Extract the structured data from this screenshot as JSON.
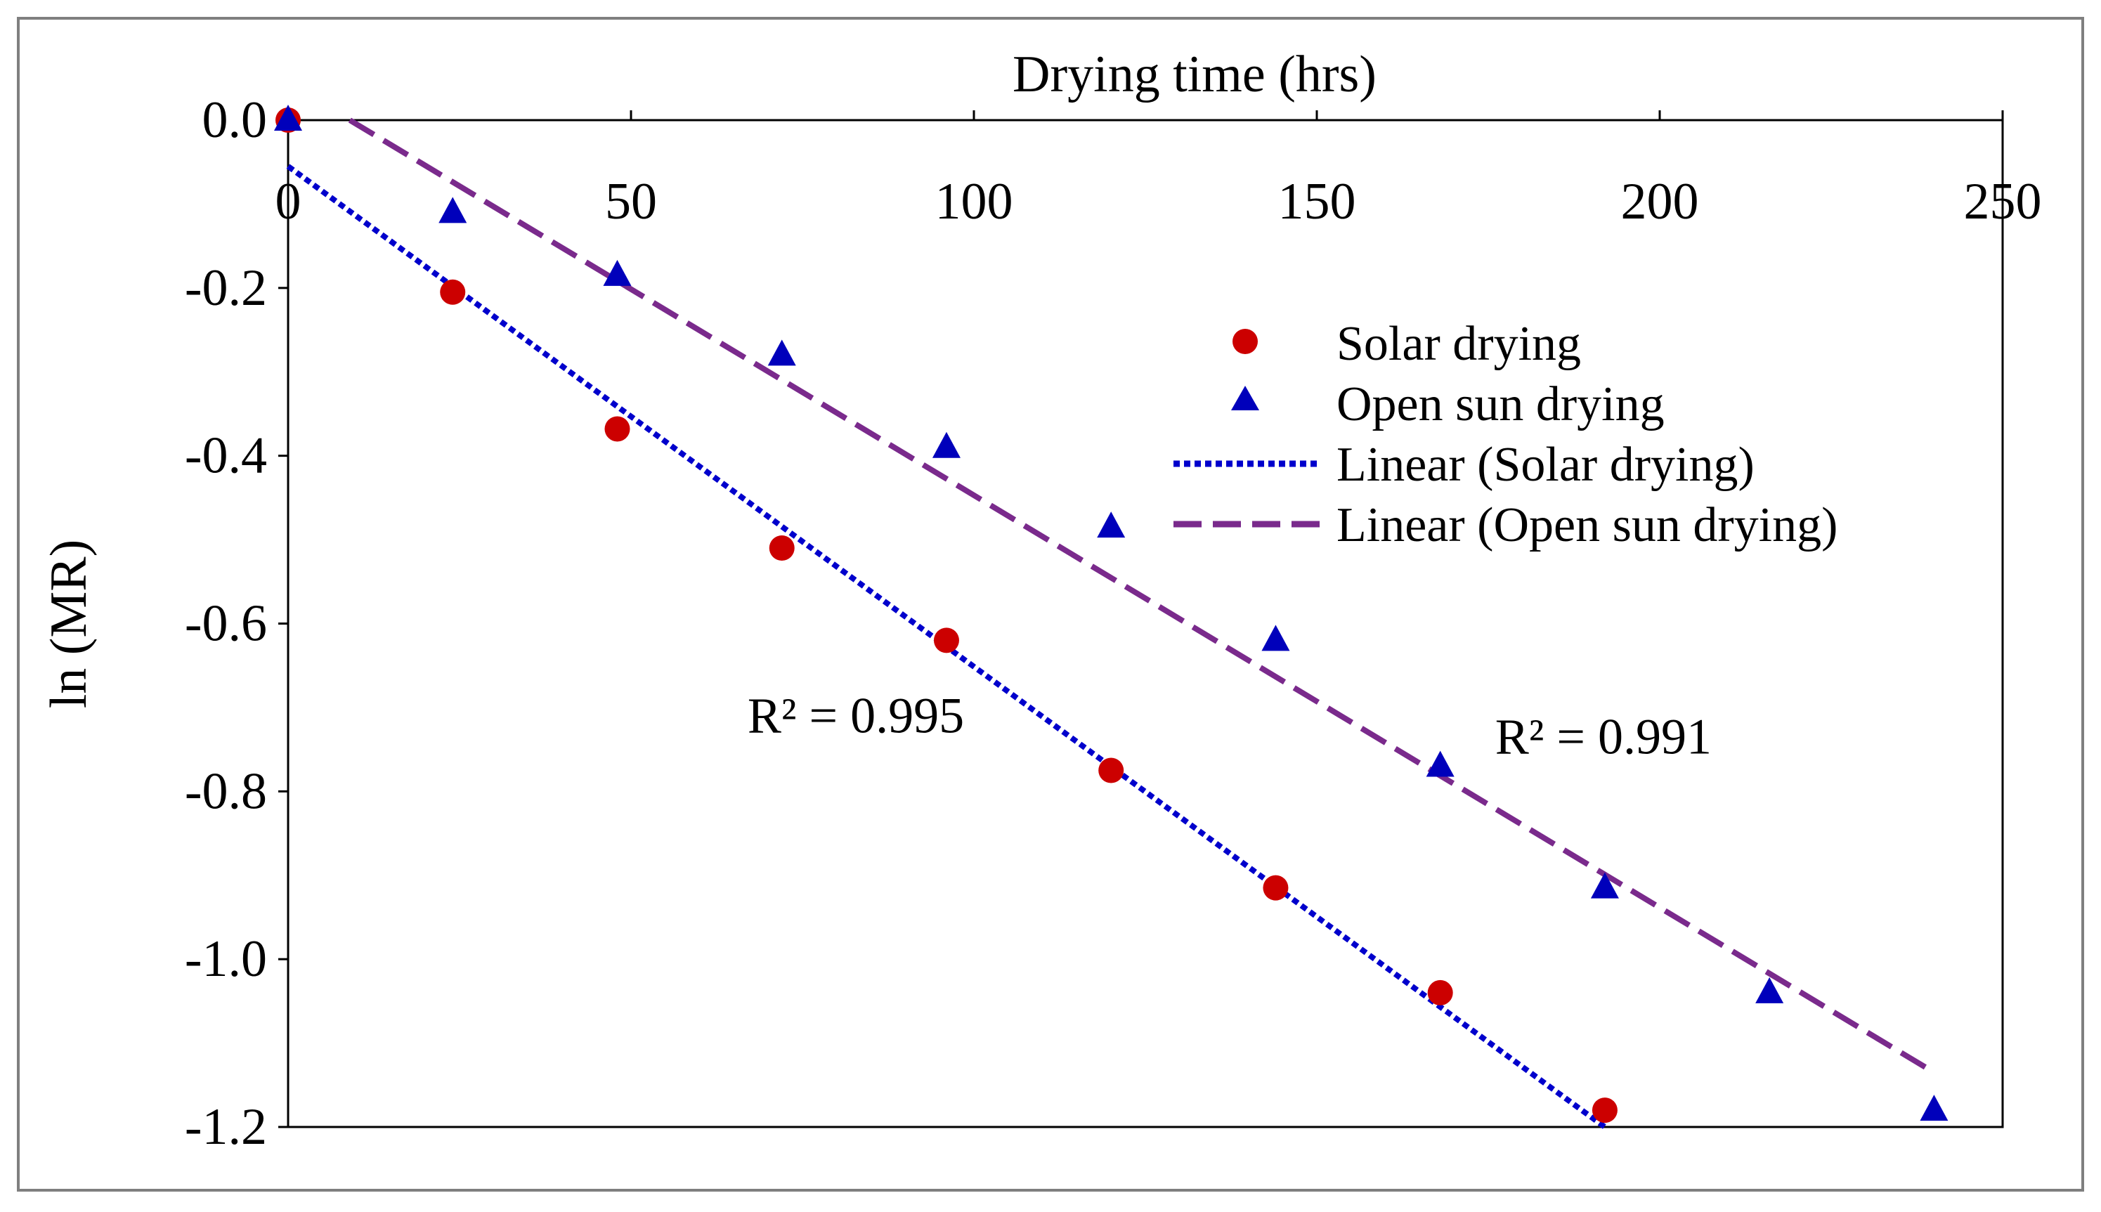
{
  "chart_data": {
    "type": "scatter",
    "title": "",
    "xlabel": "Drying time (hrs)",
    "ylabel": "ln (MR)",
    "xlim": [
      0,
      250
    ],
    "ylim": [
      -1.2,
      0.0
    ],
    "x_ticks": [
      0,
      50,
      100,
      150,
      200,
      250
    ],
    "x_tick_labels": [
      "0",
      "50",
      "100",
      "150",
      "200",
      "250"
    ],
    "y_ticks": [
      0.0,
      -0.2,
      -0.4,
      -0.6,
      -0.8,
      -1.0,
      -1.2
    ],
    "y_tick_labels": [
      "0.0",
      "-0.2",
      "-0.4",
      "-0.6",
      "-0.8",
      "-1.0",
      "-1.2"
    ],
    "x_axis_position": "top",
    "legend_position": "top-right",
    "series": [
      {
        "name": "Solar drying",
        "marker": "circle",
        "color": "#cc0000",
        "x": [
          0,
          24,
          48,
          72,
          96,
          120,
          144,
          168,
          192
        ],
        "y": [
          0.0,
          -0.205,
          -0.368,
          -0.51,
          -0.62,
          -0.775,
          -0.915,
          -1.04,
          -1.18
        ]
      },
      {
        "name": "Open sun drying",
        "marker": "triangle",
        "color": "#0000bb",
        "x": [
          0,
          24,
          48,
          72,
          96,
          120,
          144,
          168,
          192,
          216,
          240
        ],
        "y": [
          0.0,
          -0.11,
          -0.185,
          -0.28,
          -0.39,
          -0.485,
          -0.62,
          -0.77,
          -0.915,
          -1.04,
          -1.18
        ]
      }
    ],
    "trendlines": [
      {
        "name": "Linear (Solar drying)",
        "style": "dotted",
        "color": "#0000cc",
        "x": [
          0,
          192
        ],
        "y": [
          -0.055,
          -1.2
        ],
        "r2_label": "R² = 0.995",
        "r2_anchor": [
          67,
          -0.73
        ]
      },
      {
        "name": "Linear (Open sun drying)",
        "style": "dashed",
        "color": "#7a2a8c",
        "x": [
          9,
          240
        ],
        "y": [
          0.0,
          -1.135
        ],
        "r2_label": "R² = 0.991",
        "r2_anchor": [
          176,
          -0.755
        ]
      }
    ]
  }
}
